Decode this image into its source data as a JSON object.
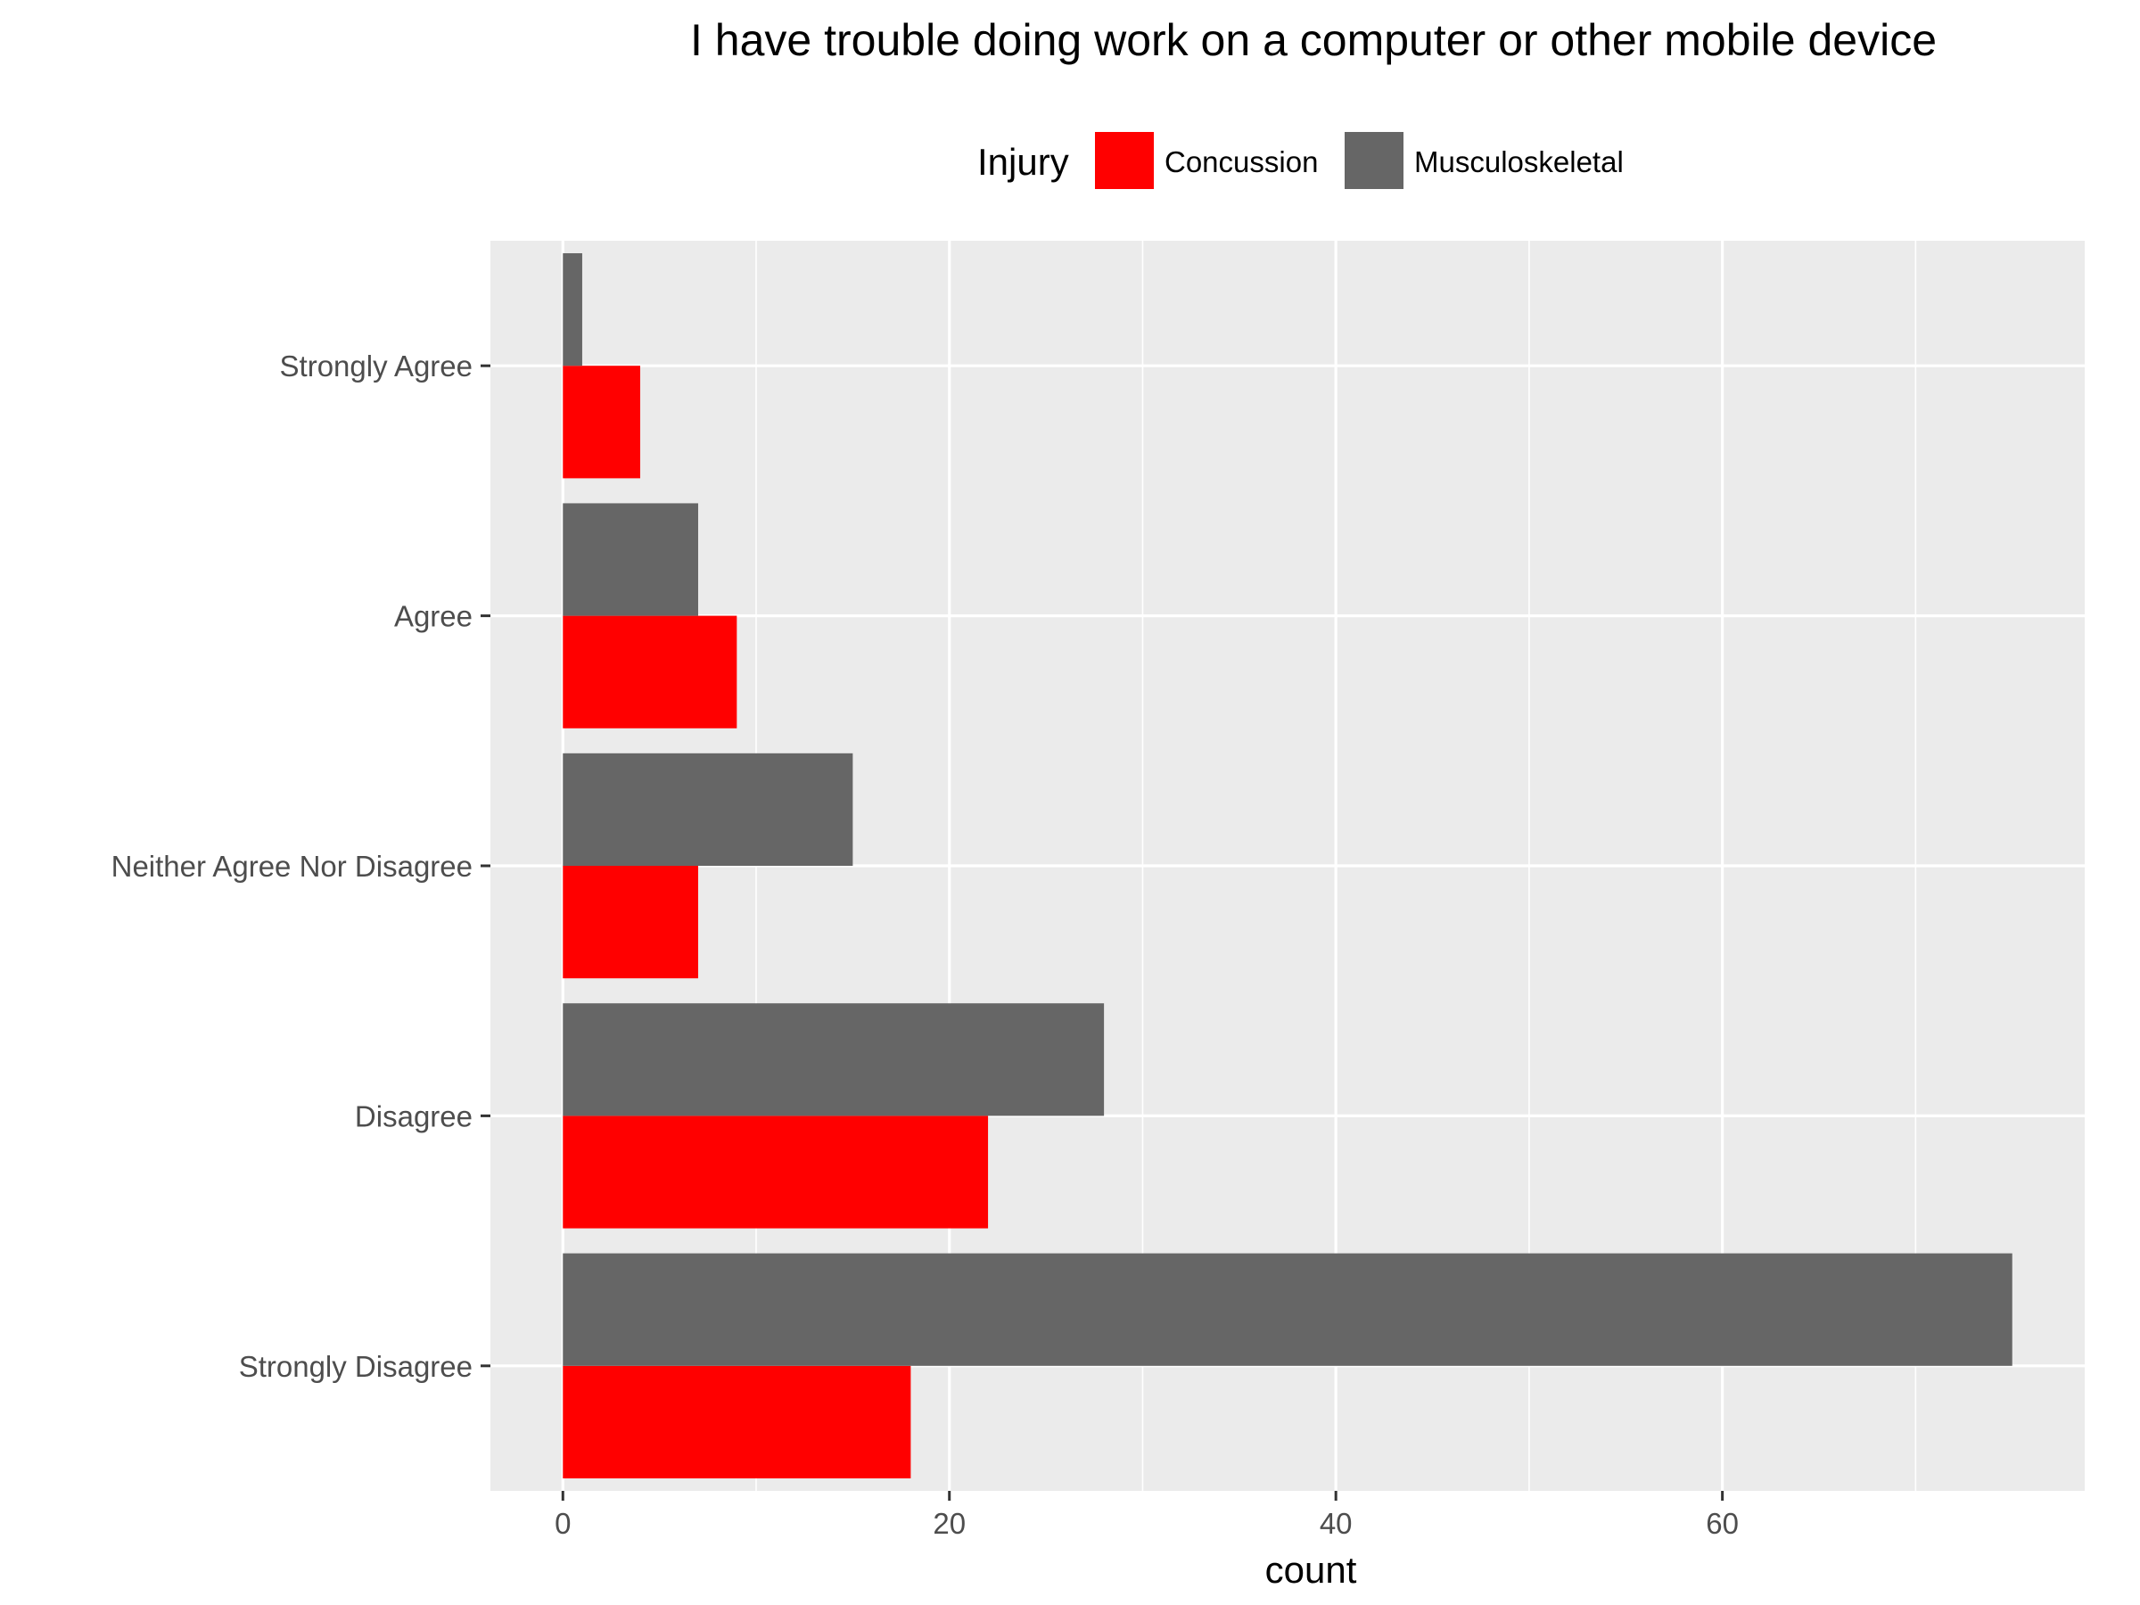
{
  "chart_data": {
    "type": "bar",
    "orientation": "horizontal",
    "title": "I have trouble doing work on a computer or other mobile device",
    "xlabel": "count",
    "ylabel": "",
    "categories": [
      "Strongly Agree",
      "Agree",
      "Neither Agree Nor Disagree",
      "Disagree",
      "Strongly Disagree"
    ],
    "series": [
      {
        "name": "Concussion",
        "color": "#ff0000",
        "values": [
          4,
          9,
          7,
          22,
          18
        ]
      },
      {
        "name": "Musculoskeletal",
        "color": "#666666",
        "values": [
          1,
          7,
          15,
          28,
          75
        ]
      }
    ],
    "xlim": [
      -3.75,
      78.75
    ],
    "xticks": [
      0,
      20,
      40,
      60
    ],
    "xtick_labels": [
      "0",
      "20",
      "40",
      "60"
    ],
    "grid": true,
    "legend": {
      "title": "Injury",
      "position": "top"
    }
  }
}
